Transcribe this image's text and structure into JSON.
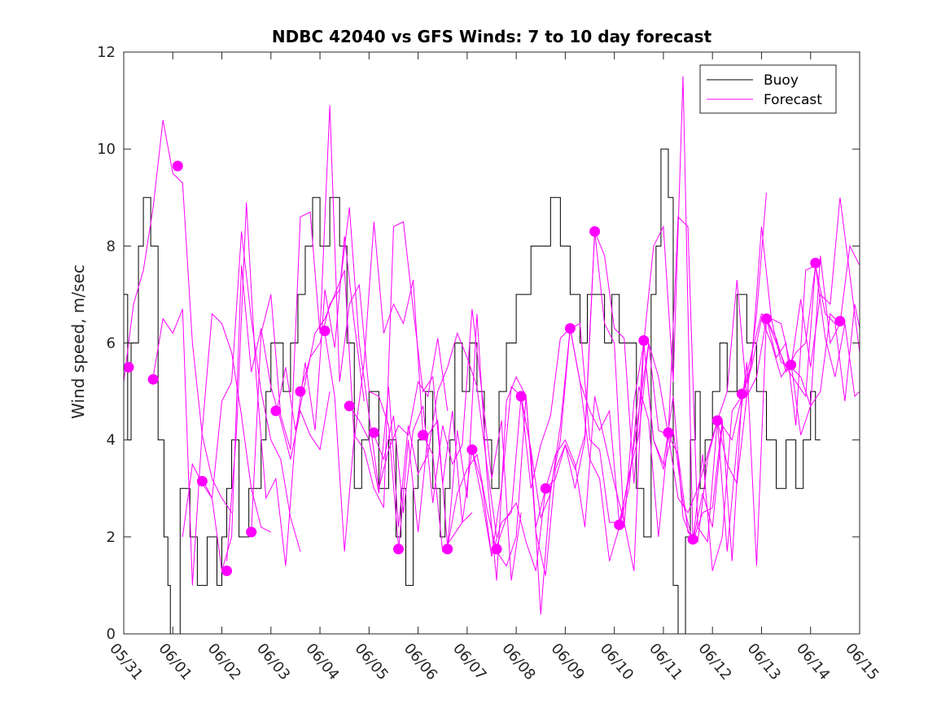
{
  "chart_data": {
    "type": "line",
    "title": "NDBC 42040 vs GFS Winds: 7 to 10 day forecast",
    "xlabel": "",
    "ylabel": "Wind speed, m/sec",
    "ylim": [
      0,
      12
    ],
    "yticks": [
      0,
      2,
      4,
      6,
      8,
      10,
      12
    ],
    "xlim": [
      "05/31",
      "06/15"
    ],
    "xticks": [
      "05/31",
      "06/01",
      "06/02",
      "06/03",
      "06/04",
      "06/05",
      "06/06",
      "06/07",
      "06/08",
      "06/09",
      "06/10",
      "06/11",
      "06/12",
      "06/13",
      "06/14",
      "06/15"
    ],
    "x_units": "day offset from 05/31 00:00",
    "grid": false,
    "legend": {
      "position": "top-right",
      "entries": [
        "Buoy",
        "Forecast"
      ]
    },
    "colors": {
      "buoy": "#000000",
      "forecast": "#ff00ff"
    },
    "series": [
      {
        "name": "Buoy",
        "x": [
          0.0,
          0.08,
          0.15,
          0.3,
          0.4,
          0.55,
          0.7,
          0.82,
          0.9,
          0.95,
          1.15,
          1.35,
          1.5,
          1.7,
          1.9,
          2.0,
          2.1,
          2.2,
          2.35,
          2.55,
          2.8,
          2.9,
          3.0,
          3.25,
          3.4,
          3.55,
          3.7,
          3.85,
          4.0,
          4.2,
          4.4,
          4.55,
          4.7,
          4.85,
          5.0,
          5.2,
          5.4,
          5.55,
          5.65,
          5.75,
          5.9,
          6.0,
          6.15,
          6.3,
          6.45,
          6.55,
          6.65,
          6.75,
          6.9,
          7.05,
          7.2,
          7.35,
          7.5,
          7.65,
          7.8,
          8.0,
          8.15,
          8.3,
          8.5,
          8.7,
          8.9,
          9.1,
          9.3,
          9.45,
          9.6,
          9.8,
          9.95,
          10.1,
          10.3,
          10.45,
          10.6,
          10.75,
          10.85,
          10.95,
          11.1,
          11.2,
          11.3,
          11.45,
          11.55,
          11.65,
          11.75,
          11.85,
          12.0,
          12.15,
          12.3,
          12.5,
          12.7,
          12.9,
          13.1,
          13.3,
          13.5,
          13.7,
          13.85,
          14.0,
          14.1
        ],
        "values": [
          7,
          4,
          6,
          8,
          9,
          8,
          4,
          2,
          1,
          0,
          3,
          2,
          1,
          2,
          1,
          2,
          3,
          4,
          2,
          3,
          4,
          5,
          6,
          5,
          6,
          7,
          8,
          9,
          8,
          9,
          8,
          6,
          3,
          4,
          5,
          3,
          4,
          2,
          3,
          1,
          3,
          4,
          5,
          3,
          2,
          3,
          4,
          6,
          5,
          6,
          5,
          4,
          3,
          5,
          6,
          7,
          7,
          8,
          8,
          9,
          8,
          7,
          6,
          7,
          7,
          6,
          7,
          6,
          6,
          3,
          2,
          7,
          8,
          10,
          9,
          1,
          0,
          2,
          4,
          5,
          3,
          4,
          5,
          6,
          5,
          7,
          6,
          5,
          4,
          3,
          4,
          3,
          4,
          5,
          4
        ]
      }
    ],
    "forecast_runs": [
      {
        "x": [
          0.0,
          0.2,
          0.4,
          0.6,
          0.8,
          1.0,
          1.2,
          1.4,
          1.6,
          1.8,
          2.0,
          2.2
        ],
        "values": [
          5.2,
          6.8,
          7.5,
          8.8,
          10.6,
          9.5,
          9.3,
          6.0,
          4.1,
          3.2,
          2.8,
          2.5
        ]
      },
      {
        "x": [
          0.6,
          0.8,
          1.0,
          1.2,
          1.4,
          1.6,
          1.8,
          2.0,
          2.2,
          2.4,
          2.6,
          2.8,
          3.0
        ],
        "values": [
          5.3,
          6.5,
          6.2,
          6.7,
          1.0,
          4.2,
          6.6,
          6.4,
          5.8,
          4.5,
          3.0,
          2.2,
          2.1
        ]
      },
      {
        "x": [
          1.2,
          1.4,
          1.6,
          1.8,
          2.0,
          2.2,
          2.4,
          2.6,
          2.8,
          3.0,
          3.2,
          3.4,
          3.6
        ],
        "values": [
          2.0,
          3.5,
          3.1,
          2.8,
          4.8,
          5.2,
          8.3,
          6.5,
          5.0,
          4.0,
          3.6,
          2.4,
          1.7
        ]
      },
      {
        "x": [
          1.6,
          1.8,
          2.0,
          2.2,
          2.4,
          2.6,
          2.8,
          3.0,
          3.2,
          3.4,
          3.6,
          3.8,
          4.0,
          4.2
        ],
        "values": [
          3.2,
          2.8,
          1.3,
          2.0,
          7.6,
          5.4,
          6.3,
          5.1,
          4.4,
          3.6,
          4.6,
          4.1,
          3.8,
          5.0
        ]
      },
      {
        "x": [
          2.1,
          2.3,
          2.5,
          2.7,
          2.9,
          3.1,
          3.3,
          3.5,
          3.7,
          3.9,
          4.1,
          4.3,
          4.5,
          4.7,
          4.9
        ],
        "values": [
          1.5,
          4.2,
          8.9,
          5.3,
          2.8,
          3.2,
          1.4,
          4.1,
          5.6,
          4.2,
          7.1,
          5.9,
          8.2,
          6.4,
          4.8
        ]
      },
      {
        "x": [
          2.6,
          2.8,
          3.0,
          3.2,
          3.4,
          3.6,
          3.8,
          4.0,
          4.2,
          4.4,
          4.6,
          4.8,
          5.0,
          5.2,
          5.4,
          5.6
        ],
        "values": [
          2.1,
          6.2,
          7.0,
          4.5,
          3.8,
          8.6,
          8.7,
          6.2,
          10.9,
          5.2,
          6.8,
          7.2,
          5.0,
          4.9,
          4.3,
          1.8
        ]
      },
      {
        "x": [
          3.1,
          3.3,
          3.5,
          3.7,
          3.9,
          4.1,
          4.3,
          4.5,
          4.7,
          4.9,
          5.1,
          5.3,
          5.5,
          5.7,
          5.9,
          6.1
        ],
        "values": [
          4.5,
          5.5,
          4.2,
          5.2,
          6.2,
          6.5,
          7.0,
          7.5,
          4.0,
          5.6,
          8.5,
          6.2,
          6.8,
          6.4,
          7.3,
          4.1
        ]
      },
      {
        "x": [
          3.6,
          3.8,
          4.0,
          4.2,
          4.4,
          4.6,
          4.8,
          5.0,
          5.2,
          5.4,
          5.6,
          5.8,
          6.0,
          6.2,
          6.4,
          6.6
        ],
        "values": [
          5.0,
          5.7,
          6.0,
          6.8,
          7.1,
          8.8,
          6.0,
          4.5,
          3.0,
          3.8,
          4.3,
          4.1,
          5.2,
          4.9,
          6.1,
          4.6
        ]
      },
      {
        "x": [
          4.1,
          4.3,
          4.5,
          4.7,
          4.9,
          5.1,
          5.3,
          5.5,
          5.7,
          5.9,
          6.1,
          6.3,
          6.5,
          6.7,
          6.9,
          7.1
        ],
        "values": [
          6.2,
          4.9,
          1.7,
          4.1,
          3.8,
          3.0,
          2.6,
          8.4,
          8.5,
          6.7,
          5.0,
          5.3,
          3.1,
          4.6,
          2.3,
          2.5
        ]
      },
      {
        "x": [
          4.6,
          4.8,
          5.0,
          5.2,
          5.4,
          5.6,
          5.8,
          6.0,
          6.2,
          6.4,
          6.6,
          6.8,
          7.0,
          7.2,
          7.4,
          7.6
        ],
        "values": [
          4.7,
          4.4,
          4.0,
          2.9,
          5.1,
          2.2,
          4.3,
          3.3,
          3.7,
          5.0,
          5.5,
          6.2,
          5.7,
          5.1,
          3.5,
          2.0
        ]
      },
      {
        "x": [
          5.1,
          5.3,
          5.5,
          5.7,
          5.9,
          6.1,
          6.3,
          6.5,
          6.7,
          6.9,
          7.1,
          7.3,
          7.5,
          7.7,
          7.9,
          8.1
        ],
        "values": [
          4.1,
          3.6,
          4.5,
          2.5,
          4.2,
          4.7,
          2.7,
          4.3,
          3.5,
          3.9,
          6.7,
          5.0,
          3.2,
          4.4,
          1.1,
          2.5
        ]
      },
      {
        "x": [
          5.6,
          5.8,
          6.0,
          6.2,
          6.4,
          6.6,
          6.8,
          7.0,
          7.2,
          7.4,
          7.6,
          7.8,
          8.0,
          8.2,
          8.4,
          8.6
        ],
        "values": [
          1.7,
          4.0,
          2.1,
          4.1,
          4.4,
          1.8,
          4.2,
          2.8,
          6.6,
          3.3,
          1.1,
          4.8,
          5.3,
          4.9,
          2.2,
          3.0
        ]
      },
      {
        "x": [
          6.1,
          6.3,
          6.5,
          6.7,
          6.9,
          7.1,
          7.3,
          7.5,
          7.7,
          7.9,
          8.1,
          8.3,
          8.5,
          8.7,
          8.9,
          9.1
        ],
        "values": [
          4.1,
          3.7,
          1.7,
          2.0,
          2.3,
          3.8,
          3.1,
          1.6,
          3.0,
          5.1,
          4.9,
          3.0,
          3.9,
          4.5,
          6.1,
          6.3
        ]
      },
      {
        "x": [
          6.6,
          6.8,
          7.0,
          7.2,
          7.4,
          7.6,
          7.8,
          8.0,
          8.2,
          8.4,
          8.6,
          8.8,
          9.0,
          9.2,
          9.4,
          9.6
        ],
        "values": [
          1.8,
          2.9,
          3.4,
          3.7,
          2.6,
          1.7,
          1.4,
          2.0,
          4.9,
          2.1,
          1.2,
          3.4,
          3.9,
          3.0,
          4.0,
          8.3
        ]
      },
      {
        "x": [
          7.1,
          7.3,
          7.5,
          7.7,
          7.9,
          8.1,
          8.3,
          8.5,
          8.7,
          8.9,
          9.1,
          9.3,
          9.5,
          9.7,
          9.9,
          10.1
        ],
        "values": [
          3.8,
          2.8,
          1.6,
          2.3,
          2.5,
          4.9,
          3.8,
          2.4,
          2.9,
          4.3,
          6.3,
          5.2,
          4.6,
          4.2,
          4.6,
          2.3
        ]
      },
      {
        "x": [
          7.6,
          7.8,
          8.0,
          8.2,
          8.4,
          8.6,
          8.8,
          9.0,
          9.2,
          9.4,
          9.6,
          9.8,
          10.0,
          10.2,
          10.4,
          10.6
        ],
        "values": [
          1.8,
          2.4,
          2.7,
          1.9,
          1.3,
          3.0,
          3.2,
          3.9,
          3.4,
          4.1,
          8.3,
          6.4,
          6.0,
          2.2,
          4.8,
          6.0
        ]
      },
      {
        "x": [
          8.1,
          8.3,
          8.5,
          8.7,
          8.9,
          9.1,
          9.3,
          9.5,
          9.7,
          9.9,
          10.1,
          10.3,
          10.5,
          10.7,
          10.9,
          11.1
        ],
        "values": [
          4.9,
          3.8,
          0.4,
          3.0,
          4.0,
          6.3,
          5.2,
          3.6,
          3.2,
          1.5,
          2.2,
          3.0,
          5.1,
          4.4,
          2.0,
          4.1
        ]
      },
      {
        "x": [
          8.6,
          8.8,
          9.0,
          9.2,
          9.4,
          9.6,
          9.8,
          10.0,
          10.2,
          10.4,
          10.6,
          10.8,
          11.0,
          11.2,
          11.4,
          11.6
        ],
        "values": [
          3.0,
          3.7,
          4.0,
          3.5,
          2.2,
          4.9,
          4.0,
          3.1,
          2.3,
          1.3,
          6.0,
          8.0,
          8.4,
          5.2,
          11.5,
          1.9
        ]
      },
      {
        "x": [
          9.1,
          9.3,
          9.5,
          9.7,
          9.9,
          10.1,
          10.3,
          10.5,
          10.7,
          10.9,
          11.1,
          11.3,
          11.5,
          11.7,
          11.9,
          12.1
        ],
        "values": [
          6.3,
          6.4,
          4.0,
          3.8,
          2.3,
          2.3,
          3.2,
          4.6,
          6.0,
          4.2,
          4.1,
          8.6,
          8.4,
          2.2,
          1.9,
          4.4
        ]
      },
      {
        "x": [
          9.6,
          9.8,
          10.0,
          10.2,
          10.4,
          10.6,
          10.8,
          11.0,
          11.2,
          11.4,
          11.6,
          11.8,
          12.0,
          12.2,
          12.4,
          12.6
        ],
        "values": [
          8.3,
          7.8,
          6.3,
          6.1,
          3.1,
          6.0,
          4.0,
          3.5,
          4.9,
          2.4,
          1.9,
          2.5,
          2.6,
          4.4,
          1.5,
          4.9
        ]
      },
      {
        "x": [
          10.1,
          10.3,
          10.5,
          10.7,
          10.9,
          11.1,
          11.3,
          11.5,
          11.7,
          11.9,
          12.1,
          12.3,
          12.5,
          12.7,
          12.9,
          13.1
        ],
        "values": [
          2.2,
          3.3,
          4.1,
          6.0,
          5.3,
          4.1,
          2.8,
          2.5,
          3.0,
          3.7,
          4.4,
          5.0,
          7.3,
          4.9,
          6.6,
          9.1
        ]
      },
      {
        "x": [
          10.6,
          10.8,
          11.0,
          11.2,
          11.4,
          11.6,
          11.8,
          12.0,
          12.2,
          12.4,
          12.6,
          12.8,
          13.0,
          13.2,
          13.4,
          13.6
        ],
        "values": [
          6.0,
          4.0,
          3.4,
          4.2,
          2.7,
          1.9,
          3.7,
          1.3,
          2.0,
          4.6,
          4.9,
          5.6,
          8.4,
          6.5,
          6.4,
          5.5
        ]
      },
      {
        "x": [
          11.1,
          11.3,
          11.5,
          11.7,
          11.9,
          12.1,
          12.3,
          12.5,
          12.7,
          12.9,
          13.1,
          13.3,
          13.5,
          13.7,
          13.9,
          14.1
        ],
        "values": [
          4.1,
          3.7,
          2.1,
          1.9,
          3.6,
          4.4,
          1.7,
          3.9,
          5.6,
          1.4,
          6.5,
          5.7,
          6.0,
          4.3,
          7.5,
          7.6
        ]
      },
      {
        "x": [
          11.6,
          11.8,
          12.0,
          12.2,
          12.4,
          12.6,
          12.8,
          13.0,
          13.2,
          13.4,
          13.6,
          13.8,
          14.0,
          14.2,
          14.4,
          14.6
        ],
        "values": [
          1.9,
          2.9,
          2.2,
          4.3,
          4.0,
          4.9,
          5.5,
          6.5,
          6.0,
          5.3,
          5.6,
          4.1,
          4.7,
          7.8,
          6.0,
          6.4
        ]
      },
      {
        "x": [
          12.1,
          12.3,
          12.5,
          12.7,
          12.9,
          13.1,
          13.3,
          13.5,
          13.7,
          13.9,
          14.1,
          14.3,
          14.5,
          14.7,
          14.9,
          15.0
        ],
        "values": [
          4.4,
          3.5,
          3.1,
          4.9,
          5.3,
          6.5,
          6.0,
          5.5,
          5.2,
          4.9,
          7.6,
          6.1,
          5.3,
          6.4,
          4.9,
          5.0
        ]
      },
      {
        "x": [
          12.6,
          12.8,
          13.0,
          13.2,
          13.4,
          13.6,
          13.8,
          14.0,
          14.2,
          14.4,
          14.6,
          14.8,
          15.0
        ],
        "values": [
          4.9,
          5.8,
          6.6,
          6.5,
          5.6,
          5.5,
          6.9,
          5.5,
          7.0,
          6.8,
          9.0,
          7.4,
          5.8
        ]
      },
      {
        "x": [
          13.1,
          13.3,
          13.5,
          13.7,
          13.9,
          14.1,
          14.3,
          14.5,
          14.7,
          14.9,
          15.0
        ],
        "values": [
          6.5,
          6.1,
          5.4,
          5.8,
          6.0,
          7.6,
          6.6,
          6.4,
          4.8,
          6.8,
          6.3
        ]
      },
      {
        "x": [
          13.6,
          13.8,
          14.0,
          14.2,
          14.4,
          14.6,
          14.8,
          15.0
        ],
        "values": [
          5.5,
          5.3,
          4.7,
          5.0,
          6.6,
          6.4,
          8.0,
          7.6
        ]
      }
    ],
    "forecast_markers": {
      "x": [
        0.1,
        0.6,
        1.1,
        1.6,
        2.1,
        2.6,
        3.1,
        3.6,
        4.1,
        4.6,
        5.1,
        5.6,
        6.1,
        6.6,
        7.1,
        7.6,
        8.1,
        8.6,
        9.1,
        9.6,
        10.1,
        10.6,
        11.1,
        11.6,
        12.1,
        12.6,
        13.1,
        13.6,
        14.1,
        14.6
      ],
      "values": [
        5.5,
        5.25,
        9.65,
        3.15,
        1.3,
        2.1,
        4.6,
        5.0,
        6.25,
        4.7,
        4.15,
        1.75,
        4.1,
        1.75,
        3.8,
        1.75,
        4.9,
        3.0,
        6.3,
        8.3,
        2.25,
        6.05,
        4.15,
        1.95,
        4.4,
        4.95,
        6.5,
        5.55,
        7.65,
        6.45
      ]
    }
  }
}
